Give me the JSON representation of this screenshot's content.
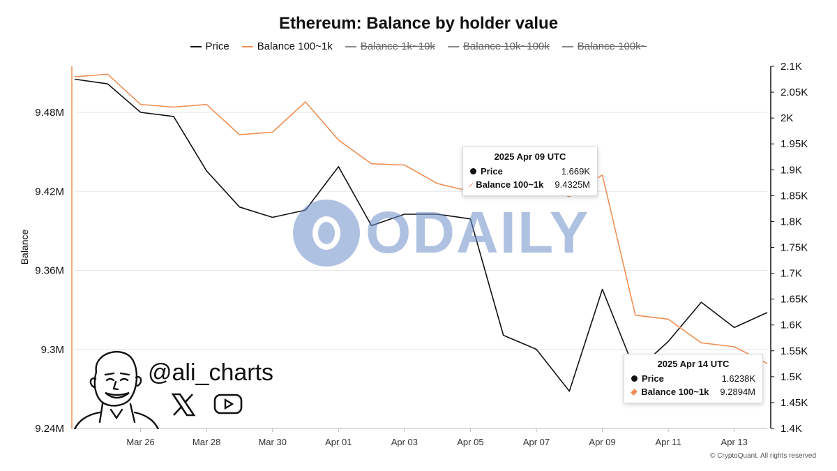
{
  "chart_data": {
    "type": "line",
    "title": "Ethereum: Balance by holder value",
    "y_left_label": "Balance",
    "legend": [
      {
        "name": "Price",
        "color": "#111111",
        "visible": true
      },
      {
        "name": "Balance 100~1k",
        "color": "#ee9055",
        "visible": true
      },
      {
        "name": "Balance 1k~10k",
        "color": "#888888",
        "visible": false
      },
      {
        "name": "Balance 10k~100k",
        "color": "#888888",
        "visible": false
      },
      {
        "name": "Balance 100k~",
        "color": "#888888",
        "visible": false
      }
    ],
    "x": [
      "2025-03-24",
      "2025-03-25",
      "2025-03-26",
      "2025-03-27",
      "2025-03-28",
      "2025-03-29",
      "2025-03-30",
      "2025-03-31",
      "2025-04-01",
      "2025-04-02",
      "2025-04-03",
      "2025-04-04",
      "2025-04-05",
      "2025-04-06",
      "2025-04-07",
      "2025-04-08",
      "2025-04-09",
      "2025-04-10",
      "2025-04-11",
      "2025-04-12",
      "2025-04-13",
      "2025-04-14"
    ],
    "x_ticks": [
      {
        "date": "2025-03-26",
        "label": "Mar 26"
      },
      {
        "date": "2025-03-28",
        "label": "Mar 28"
      },
      {
        "date": "2025-03-30",
        "label": "Mar 30"
      },
      {
        "date": "2025-04-01",
        "label": "Apr 01"
      },
      {
        "date": "2025-04-03",
        "label": "Apr 03"
      },
      {
        "date": "2025-04-05",
        "label": "Apr 05"
      },
      {
        "date": "2025-04-07",
        "label": "Apr 07"
      },
      {
        "date": "2025-04-09",
        "label": "Apr 09"
      },
      {
        "date": "2025-04-11",
        "label": "Apr 11"
      },
      {
        "date": "2025-04-13",
        "label": "Apr 13"
      }
    ],
    "x_range": [
      "2025-03-24",
      "2025-04-14"
    ],
    "y_left": {
      "range": [
        9.24,
        9.515
      ],
      "unit": "M",
      "ticks": [
        {
          "value": 9.24,
          "label": "9.24M"
        },
        {
          "value": 9.3,
          "label": "9.3M"
        },
        {
          "value": 9.36,
          "label": "9.36M"
        },
        {
          "value": 9.42,
          "label": "9.42M"
        },
        {
          "value": 9.48,
          "label": "9.48M"
        }
      ]
    },
    "y_right": {
      "range": [
        1400,
        2100
      ],
      "ticks": [
        {
          "value": 1400,
          "label": "1.4K"
        },
        {
          "value": 1450,
          "label": "1.45K"
        },
        {
          "value": 1500,
          "label": "1.5K"
        },
        {
          "value": 1550,
          "label": "1.55K"
        },
        {
          "value": 1600,
          "label": "1.6K"
        },
        {
          "value": 1650,
          "label": "1.65K"
        },
        {
          "value": 1700,
          "label": "1.7K"
        },
        {
          "value": 1750,
          "label": "1.75K"
        },
        {
          "value": 1800,
          "label": "1.8K"
        },
        {
          "value": 1850,
          "label": "1.85K"
        },
        {
          "value": 1900,
          "label": "1.9K"
        },
        {
          "value": 1950,
          "label": "1.95K"
        },
        {
          "value": 2000,
          "label": "2K"
        },
        {
          "value": 2050,
          "label": "2.05K"
        },
        {
          "value": 2100,
          "label": "2.1K"
        }
      ]
    },
    "series": [
      {
        "name": "Price",
        "axis": "right",
        "color": "#111111",
        "values": [
          2075,
          2066,
          2011,
          2003,
          1898,
          1828,
          1808,
          1822,
          1906,
          1792,
          1814,
          1814,
          1805,
          1580,
          1553,
          1472,
          1669,
          1510,
          1568,
          1644,
          1595,
          1624
        ]
      },
      {
        "name": "Balance 100~1k",
        "axis": "left",
        "color": "#ee9055",
        "values": [
          9.507,
          9.509,
          9.486,
          9.484,
          9.486,
          9.463,
          9.465,
          9.488,
          9.459,
          9.441,
          9.44,
          9.426,
          9.42,
          9.423,
          9.425,
          9.416,
          9.4325,
          9.326,
          9.323,
          9.305,
          9.302,
          9.2894
        ]
      }
    ],
    "tooltips": [
      {
        "date": "2025 Apr 09 UTC",
        "rows": [
          {
            "label": "Price",
            "value": "1.669K"
          },
          {
            "label": "Balance 100~1k",
            "value": "9.4325M"
          }
        ]
      },
      {
        "date": "2025 Apr 14 UTC",
        "rows": [
          {
            "label": "Price",
            "value": "1.6238K"
          },
          {
            "label": "Balance 100~1k",
            "value": "9.2894M"
          }
        ]
      }
    ]
  },
  "watermark": {
    "text": "ODAILY",
    "faint_text": "CryptoQuant"
  },
  "overlay": {
    "handle": "@ali_charts",
    "icons": [
      "x-icon",
      "youtube-icon",
      "avatar-illustration"
    ]
  },
  "footer": "© CryptoQuant. All rights reserved"
}
